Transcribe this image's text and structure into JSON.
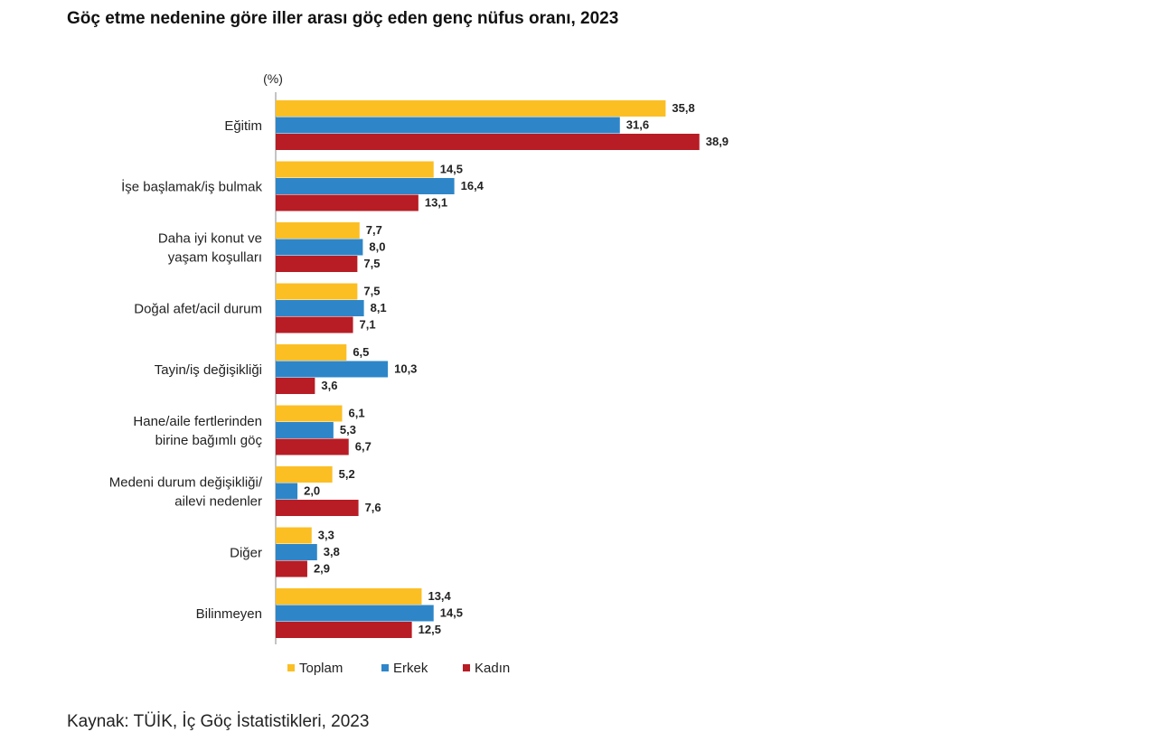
{
  "title": "Göç etme nedenine göre iller arası göç eden genç nüfus oranı, 2023",
  "source": "Kaynak: TÜİK, İç Göç İstatistikleri, 2023",
  "chart_data": {
    "type": "bar",
    "orientation": "horizontal",
    "unit_label": "(%)",
    "categories": [
      [
        "Eğitim"
      ],
      [
        "İşe başlamak/iş bulmak"
      ],
      [
        "Daha iyi konut ve",
        "yaşam koşulları"
      ],
      [
        "Doğal afet/acil durum"
      ],
      [
        "Tayin/iş değişikliği"
      ],
      [
        "Hane/aile fertlerinden",
        "birine bağımlı göç"
      ],
      [
        "Medeni durum değişikliği/",
        "ailevi nedenler"
      ],
      [
        "Diğer"
      ],
      [
        "Bilinmeyen"
      ]
    ],
    "series": [
      {
        "name": "Toplam",
        "color": "#FBBF24",
        "values": [
          35.8,
          14.5,
          7.7,
          7.5,
          6.5,
          6.1,
          5.2,
          3.3,
          13.4
        ],
        "labels": [
          "35,8",
          "14,5",
          "7,7",
          "7,5",
          "6,5",
          "6,1",
          "5,2",
          "3,3",
          "13,4"
        ]
      },
      {
        "name": "Erkek",
        "color": "#2E86C9",
        "values": [
          31.6,
          16.4,
          8.0,
          8.1,
          10.3,
          5.3,
          2.0,
          3.8,
          14.5
        ],
        "labels": [
          "31,6",
          "16,4",
          "8,0",
          "8,1",
          "10,3",
          "5,3",
          "2,0",
          "3,8",
          "14,5"
        ]
      },
      {
        "name": "Kadın",
        "color": "#B81C24",
        "values": [
          38.9,
          13.1,
          7.5,
          7.1,
          3.6,
          6.7,
          7.6,
          2.9,
          12.5
        ],
        "labels": [
          "38,9",
          "13,1",
          "7,5",
          "7,1",
          "3,6",
          "6,7",
          "7,6",
          "2,9",
          "12,5"
        ]
      }
    ],
    "xlim": [
      0,
      40
    ],
    "grid": false,
    "legend_position": "bottom"
  }
}
